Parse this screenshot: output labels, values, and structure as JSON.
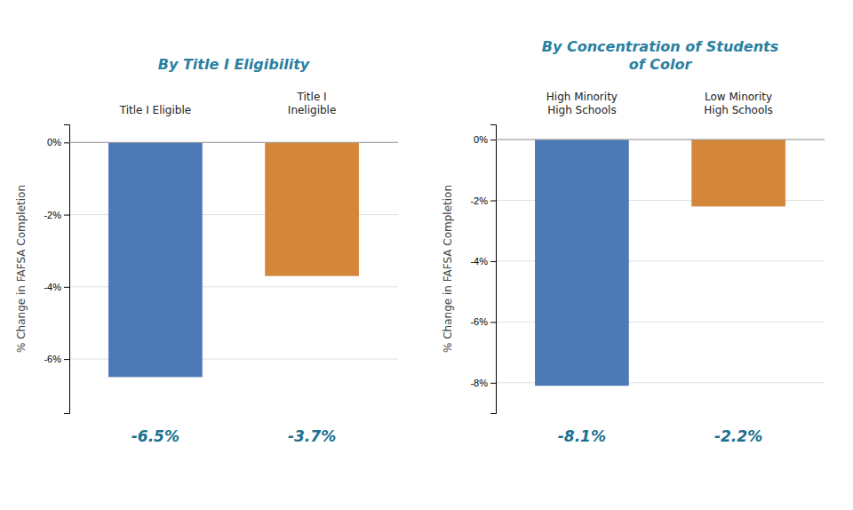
{
  "chart_data": [
    {
      "type": "bar",
      "title": "By Title I Eligibility",
      "categories": [
        "Title I Eligible",
        "Title I\nIneligible"
      ],
      "values": [
        -6.5,
        -3.7
      ],
      "colors": [
        "#4d7ab5",
        "#d4873a"
      ],
      "data_labels": true,
      "value_labels": [
        "-6.5%",
        "-3.7%"
      ],
      "ylabel": "% Change in FAFSA Completion",
      "ylim": [
        -7.5,
        0.5
      ],
      "yticks": [
        {
          "value": 0,
          "label": "0%"
        },
        {
          "value": -2,
          "label": "-2%"
        },
        {
          "value": -4,
          "label": "-4%"
        },
        {
          "value": -6,
          "label": "-6%"
        }
      ],
      "grid": true
    },
    {
      "type": "bar",
      "title": "By Concentration of Students\nof Color",
      "categories": [
        "High Minority\nHigh Schools",
        "Low Minority\nHigh Schools"
      ],
      "values": [
        -8.1,
        -2.2
      ],
      "colors": [
        "#4d7ab5",
        "#d4873a"
      ],
      "data_labels": true,
      "value_labels": [
        "-8.1%",
        "-2.2%"
      ],
      "ylabel": "% Change in FAFSA Completion",
      "ylim": [
        -9.0,
        0.5
      ],
      "yticks": [
        {
          "value": 0,
          "label": "0%"
        },
        {
          "value": -2,
          "label": "-2%"
        },
        {
          "value": -4,
          "label": "-4%"
        },
        {
          "value": -6,
          "label": "-6%"
        },
        {
          "value": -8,
          "label": "-8%"
        }
      ],
      "grid": true
    }
  ]
}
